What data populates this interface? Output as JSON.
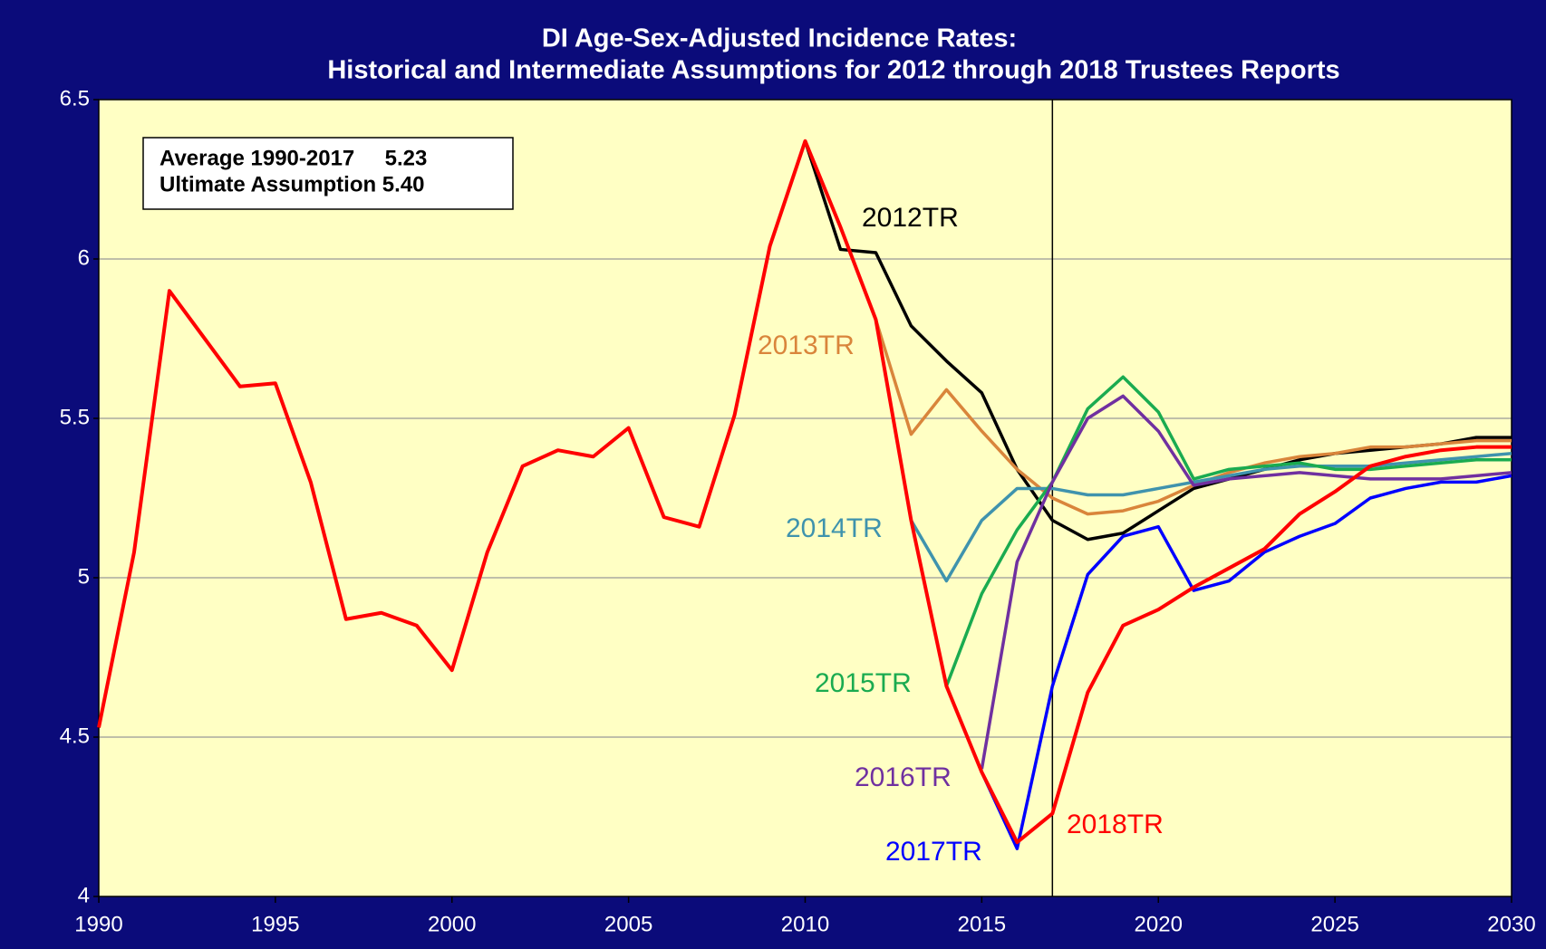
{
  "chart_data": {
    "type": "line",
    "title": "DI Age-Sex-Adjusted Incidence Rates:",
    "subtitle": "Historical and Intermediate Assumptions for 2012 through 2018 Trustees Reports",
    "annotations": [
      "Average 1990-2017     5.23",
      "Ultimate Assumption 5.40"
    ],
    "vline": 2017,
    "x": [
      1990,
      1991,
      1992,
      1993,
      1994,
      1995,
      1996,
      1997,
      1998,
      1999,
      2000,
      2001,
      2002,
      2003,
      2004,
      2005,
      2006,
      2007,
      2008,
      2009,
      2010,
      2011,
      2012,
      2013,
      2014,
      2015,
      2016,
      2017,
      2018,
      2019,
      2020,
      2021,
      2022,
      2023,
      2024,
      2025,
      2026,
      2027,
      2028,
      2029,
      2030
    ],
    "series": [
      {
        "name": "2012TR",
        "color": "#000000",
        "values": [
          null,
          null,
          null,
          null,
          null,
          null,
          null,
          null,
          null,
          null,
          null,
          null,
          null,
          null,
          null,
          null,
          null,
          null,
          null,
          null,
          6.37,
          6.03,
          6.02,
          5.79,
          5.68,
          5.58,
          5.34,
          5.18,
          5.12,
          5.14,
          5.21,
          5.28,
          5.31,
          5.34,
          5.37,
          5.39,
          5.4,
          5.41,
          5.42,
          5.44,
          5.44
        ]
      },
      {
        "name": "2013TR",
        "color": "#d9853b",
        "values": [
          null,
          null,
          null,
          null,
          null,
          null,
          null,
          null,
          null,
          null,
          null,
          null,
          null,
          null,
          null,
          null,
          null,
          null,
          null,
          null,
          null,
          null,
          5.81,
          5.45,
          5.59,
          5.46,
          5.34,
          5.25,
          5.2,
          5.21,
          5.24,
          5.29,
          5.33,
          5.36,
          5.38,
          5.39,
          5.41,
          5.41,
          5.42,
          5.43,
          5.43
        ]
      },
      {
        "name": "2014TR",
        "color": "#3f93ad",
        "values": [
          null,
          null,
          null,
          null,
          null,
          null,
          null,
          null,
          null,
          null,
          null,
          null,
          null,
          null,
          null,
          null,
          null,
          null,
          null,
          null,
          null,
          null,
          null,
          5.18,
          4.99,
          5.18,
          5.28,
          5.28,
          5.26,
          5.26,
          5.28,
          5.3,
          5.32,
          5.34,
          5.35,
          5.35,
          5.35,
          5.36,
          5.37,
          5.38,
          5.39
        ]
      },
      {
        "name": "2015TR",
        "color": "#1aab50",
        "values": [
          null,
          null,
          null,
          null,
          null,
          null,
          null,
          null,
          null,
          null,
          null,
          null,
          null,
          null,
          null,
          null,
          null,
          null,
          null,
          null,
          null,
          null,
          null,
          null,
          4.66,
          4.95,
          5.15,
          5.3,
          5.53,
          5.63,
          5.52,
          5.31,
          5.34,
          5.35,
          5.36,
          5.34,
          5.34,
          5.35,
          5.36,
          5.37,
          5.37
        ]
      },
      {
        "name": "2016TR",
        "color": "#7030a0",
        "values": [
          null,
          null,
          null,
          null,
          null,
          null,
          null,
          null,
          null,
          null,
          null,
          null,
          null,
          null,
          null,
          null,
          null,
          null,
          null,
          null,
          null,
          null,
          null,
          null,
          null,
          4.4,
          5.05,
          5.3,
          5.5,
          5.57,
          5.46,
          5.29,
          5.31,
          5.32,
          5.33,
          5.32,
          5.31,
          5.31,
          5.31,
          5.32,
          5.33
        ]
      },
      {
        "name": "2017TR",
        "color": "#0000ff",
        "values": [
          null,
          null,
          null,
          null,
          null,
          null,
          null,
          null,
          null,
          null,
          null,
          null,
          null,
          null,
          null,
          null,
          null,
          null,
          null,
          null,
          null,
          null,
          null,
          null,
          null,
          4.39,
          4.15,
          4.66,
          5.01,
          5.13,
          5.16,
          4.96,
          4.99,
          5.08,
          5.13,
          5.17,
          5.25,
          5.28,
          5.3,
          5.3,
          5.32
        ]
      },
      {
        "name": "2018TR",
        "color": "#ff0000",
        "values": [
          4.53,
          5.08,
          5.9,
          5.75,
          5.6,
          5.61,
          5.3,
          4.87,
          4.89,
          4.85,
          4.71,
          5.08,
          5.35,
          5.4,
          5.38,
          5.47,
          5.19,
          5.16,
          5.51,
          6.04,
          6.37,
          6.1,
          5.81,
          5.18,
          4.66,
          4.39,
          4.17,
          4.26,
          4.64,
          4.85,
          4.9,
          4.97,
          5.03,
          5.09,
          5.2,
          5.27,
          5.35,
          5.38,
          5.4,
          5.41,
          5.41
        ]
      }
    ],
    "xlim": [
      1990,
      2030
    ],
    "xticks": [
      1990,
      1995,
      2000,
      2005,
      2010,
      2015,
      2020,
      2025,
      2030
    ],
    "ylim": [
      4,
      6.5
    ],
    "yticks": [
      4,
      4.5,
      5,
      5.5,
      6,
      6.5
    ],
    "grid": true
  }
}
